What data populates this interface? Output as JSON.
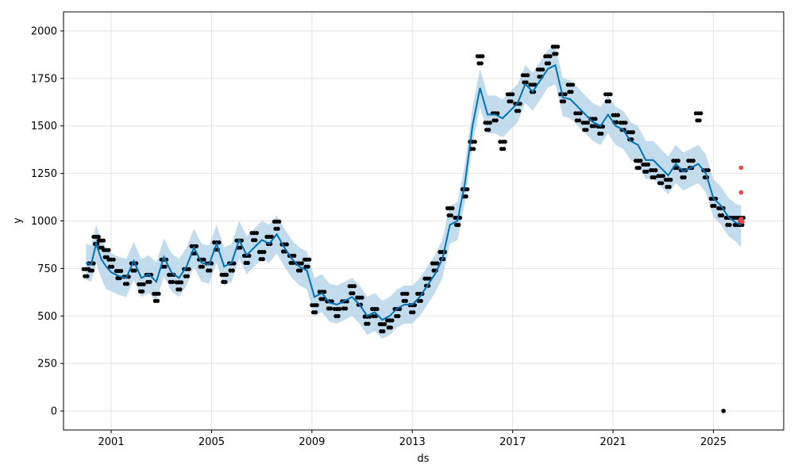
{
  "chart_data": {
    "type": "line",
    "title": "",
    "xlabel": "ds",
    "ylabel": "y",
    "xlim": [
      1999.1,
      2027.8
    ],
    "ylim": [
      -100,
      2100
    ],
    "xticks": [
      2001,
      2005,
      2009,
      2013,
      2017,
      2021,
      2025
    ],
    "xtick_labels": [
      "2001",
      "2005",
      "2009",
      "2013",
      "2017",
      "2021",
      "2025"
    ],
    "yticks": [
      0,
      250,
      500,
      750,
      1000,
      1250,
      1500,
      1750,
      2000
    ],
    "ytick_labels": [
      "0",
      "250",
      "500",
      "750",
      "1000",
      "1250",
      "1500",
      "1750",
      "2000"
    ],
    "grid": true,
    "colors": {
      "observed": "#000000",
      "forecast": "#0072B2",
      "interval": "#aed0e8",
      "highlight": "#f04646"
    },
    "series": [
      {
        "name": "",
        "role": "observed",
        "x": [
          2000.0,
          2000.2,
          2000.4,
          2000.6,
          2000.8,
          2001.0,
          2001.3,
          2001.6,
          2001.9,
          2002.2,
          2002.5,
          2002.8,
          2003.1,
          2003.4,
          2003.7,
          2004.0,
          2004.3,
          2004.6,
          2004.9,
          2005.2,
          2005.5,
          2005.8,
          2006.1,
          2006.4,
          2006.7,
          2007.0,
          2007.3,
          2007.6,
          2007.9,
          2008.2,
          2008.5,
          2008.8,
          2009.1,
          2009.4,
          2009.7,
          2010.0,
          2010.3,
          2010.6,
          2010.9,
          2011.2,
          2011.5,
          2011.8,
          2012.1,
          2012.4,
          2012.7,
          2013.0,
          2013.3,
          2013.6,
          2013.9,
          2014.2,
          2014.5,
          2014.8,
          2015.1,
          2015.4,
          2015.7,
          2016.0,
          2016.3,
          2016.6,
          2016.9,
          2017.2,
          2017.5,
          2017.8,
          2018.1,
          2018.4,
          2018.7,
          2019.0,
          2019.3,
          2019.6,
          2019.9,
          2020.2,
          2020.5,
          2020.8,
          2021.1,
          2021.4,
          2021.7,
          2022.0,
          2022.3,
          2022.6,
          2022.9,
          2023.2,
          2023.5,
          2023.8,
          2024.1,
          2024.4,
          2024.7,
          2025.0,
          2025.3,
          2025.6,
          2025.9,
          2026.1
        ],
        "y": [
          730,
          760,
          900,
          880,
          830,
          780,
          720,
          690,
          760,
          650,
          700,
          600,
          780,
          700,
          660,
          730,
          850,
          780,
          760,
          870,
          700,
          760,
          880,
          800,
          920,
          820,
          900,
          980,
          860,
          800,
          760,
          780,
          540,
          610,
          560,
          520,
          560,
          640,
          580,
          480,
          520,
          440,
          460,
          520,
          600,
          540,
          600,
          680,
          760,
          820,
          1050,
          1000,
          1150,
          1400,
          1850,
          1500,
          1550,
          1400,
          1650,
          1600,
          1750,
          1700,
          1780,
          1850,
          1900,
          1650,
          1700,
          1550,
          1500,
          1520,
          1480,
          1650,
          1540,
          1500,
          1450,
          1300,
          1280,
          1250,
          1220,
          1200,
          1300,
          1250,
          1300,
          1550,
          1250,
          1100,
          1050,
          1000,
          1000,
          1000
        ]
      },
      {
        "name": "",
        "role": "forecast",
        "x": [
          2000.0,
          2000.2,
          2000.4,
          2000.6,
          2000.8,
          2001.0,
          2001.3,
          2001.6,
          2001.9,
          2002.2,
          2002.5,
          2002.8,
          2003.1,
          2003.4,
          2003.7,
          2004.0,
          2004.3,
          2004.6,
          2004.9,
          2005.2,
          2005.5,
          2005.8,
          2006.1,
          2006.4,
          2006.7,
          2007.0,
          2007.3,
          2007.6,
          2007.9,
          2008.2,
          2008.5,
          2008.8,
          2009.1,
          2009.4,
          2009.7,
          2010.0,
          2010.3,
          2010.6,
          2010.9,
          2011.2,
          2011.5,
          2011.8,
          2012.1,
          2012.4,
          2012.7,
          2013.0,
          2013.3,
          2013.6,
          2013.9,
          2014.2,
          2014.5,
          2014.8,
          2015.1,
          2015.4,
          2015.7,
          2016.0,
          2016.3,
          2016.6,
          2016.9,
          2017.2,
          2017.5,
          2017.8,
          2018.1,
          2018.4,
          2018.7,
          2019.0,
          2019.3,
          2019.6,
          2019.9,
          2020.2,
          2020.5,
          2020.8,
          2021.1,
          2021.4,
          2021.7,
          2022.0,
          2022.3,
          2022.6,
          2022.9,
          2023.2,
          2023.5,
          2023.8,
          2024.1,
          2024.4,
          2024.7,
          2025.0,
          2025.3,
          2025.6,
          2025.9,
          2026.1
        ],
        "y": [
          780,
          770,
          880,
          800,
          760,
          730,
          710,
          700,
          790,
          700,
          720,
          680,
          810,
          730,
          700,
          760,
          860,
          780,
          770,
          880,
          760,
          780,
          900,
          820,
          860,
          900,
          880,
          930,
          860,
          800,
          760,
          740,
          600,
          620,
          570,
          560,
          580,
          600,
          560,
          500,
          520,
          480,
          500,
          540,
          560,
          560,
          600,
          660,
          720,
          800,
          980,
          1000,
          1200,
          1500,
          1700,
          1560,
          1560,
          1540,
          1580,
          1620,
          1720,
          1680,
          1740,
          1800,
          1820,
          1650,
          1640,
          1600,
          1560,
          1520,
          1500,
          1560,
          1500,
          1480,
          1420,
          1400,
          1320,
          1320,
          1280,
          1240,
          1300,
          1260,
          1280,
          1300,
          1250,
          1120,
          1080,
          1020,
          990,
          980
        ]
      }
    ],
    "interval": {
      "name": "",
      "x": [
        2000.0,
        2000.2,
        2000.4,
        2000.6,
        2000.8,
        2001.0,
        2001.3,
        2001.6,
        2001.9,
        2002.2,
        2002.5,
        2002.8,
        2003.1,
        2003.4,
        2003.7,
        2004.0,
        2004.3,
        2004.6,
        2004.9,
        2005.2,
        2005.5,
        2005.8,
        2006.1,
        2006.4,
        2006.7,
        2007.0,
        2007.3,
        2007.6,
        2007.9,
        2008.2,
        2008.5,
        2008.8,
        2009.1,
        2009.4,
        2009.7,
        2010.0,
        2010.3,
        2010.6,
        2010.9,
        2011.2,
        2011.5,
        2011.8,
        2012.1,
        2012.4,
        2012.7,
        2013.0,
        2013.3,
        2013.6,
        2013.9,
        2014.2,
        2014.5,
        2014.8,
        2015.1,
        2015.4,
        2015.7,
        2016.0,
        2016.3,
        2016.6,
        2016.9,
        2017.2,
        2017.5,
        2017.8,
        2018.1,
        2018.4,
        2018.7,
        2019.0,
        2019.3,
        2019.6,
        2019.9,
        2020.2,
        2020.5,
        2020.8,
        2021.1,
        2021.4,
        2021.7,
        2022.0,
        2022.3,
        2022.6,
        2022.9,
        2023.2,
        2023.5,
        2023.8,
        2024.1,
        2024.4,
        2024.7,
        2025.0,
        2025.3,
        2025.6,
        2025.9,
        2026.1
      ],
      "lower": [
        690,
        680,
        780,
        700,
        640,
        630,
        610,
        600,
        690,
        600,
        620,
        580,
        710,
        630,
        600,
        660,
        760,
        680,
        670,
        780,
        660,
        680,
        800,
        720,
        760,
        800,
        780,
        830,
        760,
        700,
        660,
        640,
        500,
        520,
        470,
        460,
        480,
        500,
        460,
        400,
        420,
        380,
        400,
        440,
        460,
        460,
        500,
        560,
        620,
        700,
        880,
        900,
        1100,
        1400,
        1600,
        1460,
        1460,
        1440,
        1480,
        1520,
        1620,
        1580,
        1640,
        1700,
        1720,
        1550,
        1540,
        1500,
        1460,
        1420,
        1400,
        1460,
        1400,
        1380,
        1320,
        1300,
        1220,
        1220,
        1180,
        1140,
        1200,
        1160,
        1180,
        1200,
        1150,
        1020,
        980,
        920,
        890,
        860
      ],
      "upper": [
        880,
        870,
        980,
        900,
        860,
        830,
        810,
        800,
        890,
        800,
        820,
        780,
        910,
        830,
        800,
        860,
        960,
        880,
        870,
        980,
        860,
        880,
        1000,
        920,
        960,
        1000,
        980,
        1030,
        960,
        900,
        860,
        840,
        700,
        720,
        670,
        660,
        680,
        700,
        660,
        600,
        620,
        580,
        600,
        640,
        660,
        660,
        700,
        760,
        820,
        900,
        1080,
        1100,
        1300,
        1600,
        1800,
        1660,
        1660,
        1640,
        1680,
        1720,
        1820,
        1780,
        1840,
        1900,
        1920,
        1750,
        1740,
        1700,
        1660,
        1620,
        1600,
        1660,
        1600,
        1580,
        1520,
        1500,
        1420,
        1420,
        1380,
        1340,
        1400,
        1360,
        1380,
        1400,
        1350,
        1220,
        1180,
        1120,
        1090,
        1080
      ]
    },
    "annotations": [
      {
        "role": "highlight",
        "x": 2026.1,
        "y": 1280
      },
      {
        "role": "highlight",
        "x": 2026.1,
        "y": 1150
      },
      {
        "role": "highlight",
        "x": 2026.1,
        "y": 1010
      },
      {
        "role": "highlight",
        "x": 2026.15,
        "y": 995
      },
      {
        "role": "highlight",
        "x": 2026.05,
        "y": 1000
      },
      {
        "role": "observed",
        "x": 2025.4,
        "y": 0
      }
    ]
  }
}
